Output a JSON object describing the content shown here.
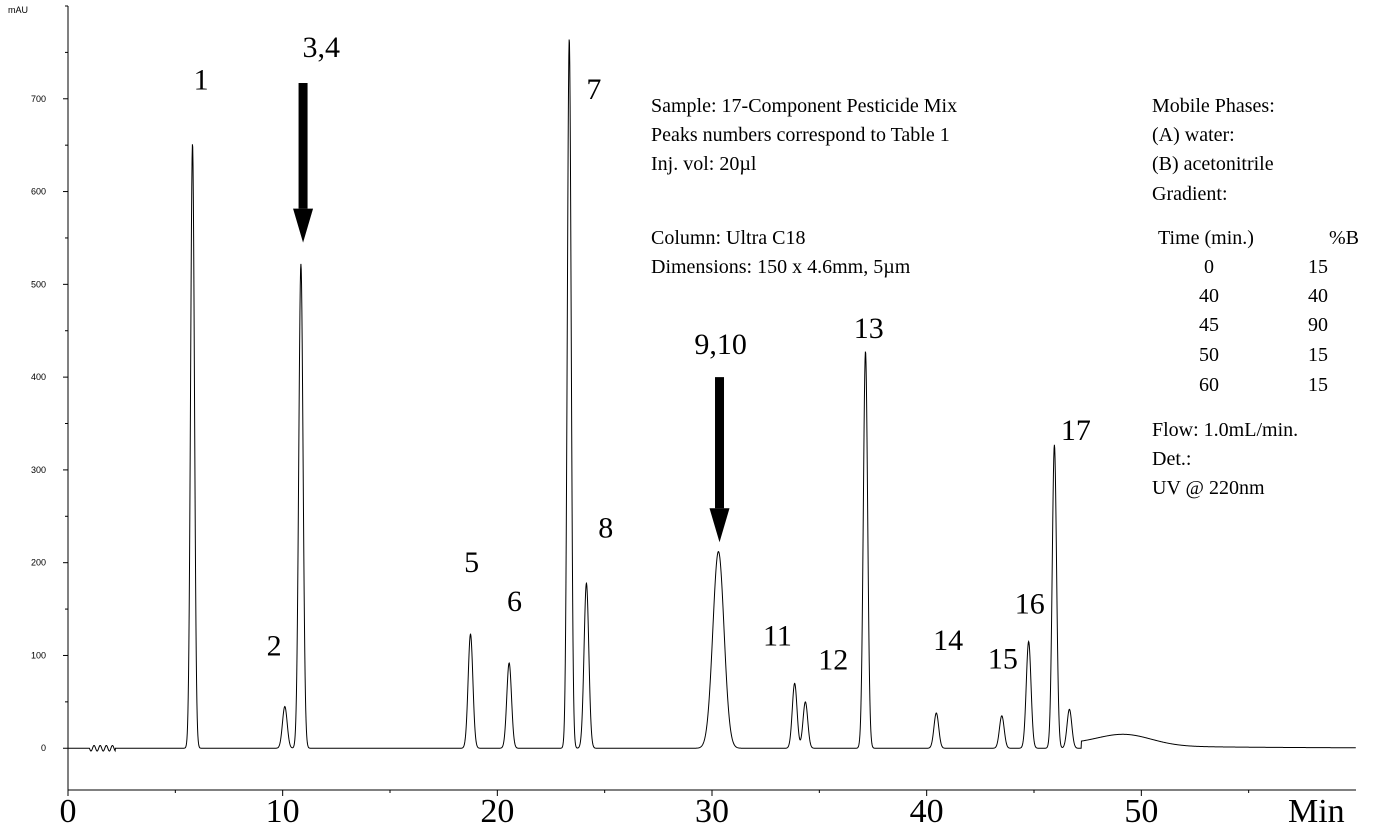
{
  "chart_data": {
    "type": "line",
    "title": "",
    "ylabel": "mAU",
    "xlabel": "Min",
    "xlim": [
      0,
      60
    ],
    "ylim": [
      -45,
      800
    ],
    "x_ticks": [
      0,
      10,
      20,
      30,
      40,
      50
    ],
    "y_ticks": [
      0,
      100,
      200,
      300,
      400,
      500,
      600,
      700
    ],
    "grid": false,
    "series": [
      {
        "peaks": [
          {
            "x": 5.8,
            "y": 652
          },
          {
            "x": 10.1,
            "y": 45
          },
          {
            "x": 10.85,
            "y": 522
          },
          {
            "x": 18.75,
            "y": 123
          },
          {
            "x": 20.55,
            "y": 92
          },
          {
            "x": 23.35,
            "y": 765
          },
          {
            "x": 24.15,
            "y": 178
          },
          {
            "x": 30.3,
            "y": 212
          },
          {
            "x": 33.85,
            "y": 70
          },
          {
            "x": 34.35,
            "y": 50
          },
          {
            "x": 37.15,
            "y": 428
          },
          {
            "x": 40.45,
            "y": 38
          },
          {
            "x": 43.5,
            "y": 35
          },
          {
            "x": 44.75,
            "y": 115
          },
          {
            "x": 45.95,
            "y": 327
          },
          {
            "x": 46.65,
            "y": 42
          }
        ]
      }
    ],
    "peak_labels": [
      {
        "text": "1",
        "x": 6.2,
        "y": 710
      },
      {
        "text": "2",
        "x": 9.6,
        "y": 100
      },
      {
        "text": "3,4",
        "x": 11.8,
        "y": 745
      },
      {
        "text": "5",
        "x": 18.8,
        "y": 190
      },
      {
        "text": "6",
        "x": 20.8,
        "y": 148
      },
      {
        "text": "7",
        "x": 24.5,
        "y": 700
      },
      {
        "text": "8",
        "x": 25.05,
        "y": 227
      },
      {
        "text": "9,10",
        "x": 30.4,
        "y": 425
      },
      {
        "text": "11",
        "x": 33.05,
        "y": 111
      },
      {
        "text": "12",
        "x": 35.65,
        "y": 85
      },
      {
        "text": "13",
        "x": 37.3,
        "y": 442
      },
      {
        "text": "14",
        "x": 41.0,
        "y": 106
      },
      {
        "text": "15",
        "x": 43.55,
        "y": 86
      },
      {
        "text": "16",
        "x": 44.8,
        "y": 145
      },
      {
        "text": "17",
        "x": 46.95,
        "y": 332
      }
    ],
    "arrows": [
      {
        "x": 10.95,
        "y_from": 717,
        "y_to": 545
      },
      {
        "x": 30.35,
        "y_from": 400,
        "y_to": 222
      }
    ],
    "annotations": {
      "sample": [
        "Sample: 17-Component Pesticide Mix",
        "Peaks numbers correspond to Table 1",
        "Inj. vol: 20µl",
        "",
        "Column: Ultra C18",
        "Dimensions: 150 x 4.6mm, 5µm"
      ],
      "conditions_top": [
        "Mobile Phases:",
        "(A) water:",
        "(B) acetonitrile",
        "Gradient:"
      ],
      "gradient_header": [
        "Time (min.)",
        "%B"
      ],
      "gradient_rows": [
        [
          "0",
          "15"
        ],
        [
          "40",
          "40"
        ],
        [
          "45",
          "90"
        ],
        [
          "50",
          "15"
        ],
        [
          "60",
          "15"
        ]
      ],
      "conditions_bottom": [
        "Flow: 1.0mL/min.",
        "Det.:",
        "UV @ 220nm"
      ]
    }
  }
}
